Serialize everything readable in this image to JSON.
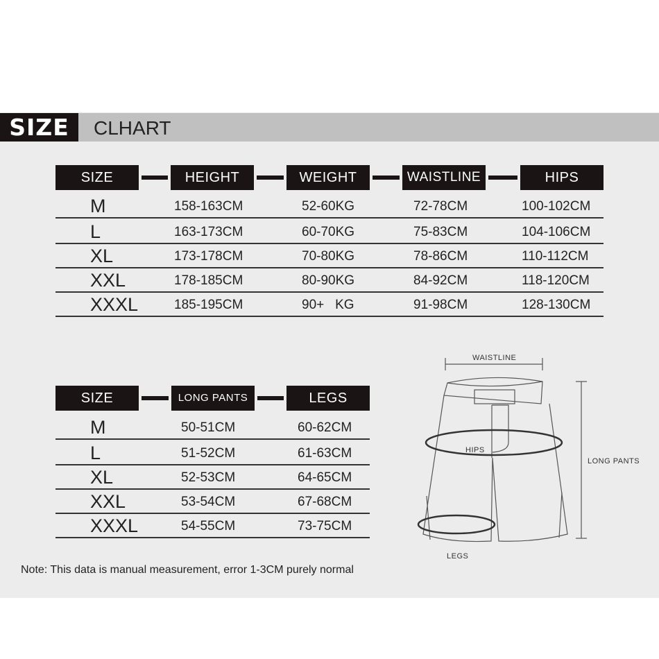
{
  "title": {
    "badge": "SIZE",
    "text": "CLHART"
  },
  "table1": {
    "headers": [
      "SIZE",
      "HEIGHT",
      "WEIGHT",
      "WAISTLINE",
      "HIPS"
    ],
    "rows": [
      [
        "M",
        "158-163CM",
        "52-60KG",
        "72-78CM",
        "100-102CM"
      ],
      [
        "L",
        "163-173CM",
        "60-70KG",
        "75-83CM",
        "104-106CM"
      ],
      [
        "XL",
        "173-178CM",
        "70-80KG",
        "78-86CM",
        "110-112CM"
      ],
      [
        "XXL",
        "178-185CM",
        "80-90KG",
        "84-92CM",
        "118-120CM"
      ],
      [
        "XXXL",
        "185-195CM",
        "90+   KG",
        "91-98CM",
        "128-130CM"
      ]
    ]
  },
  "table2": {
    "headers": [
      "SIZE",
      "LONG PANTS",
      "LEGS"
    ],
    "rows": [
      [
        "M",
        "50-51CM",
        "60-62CM"
      ],
      [
        "L",
        "51-52CM",
        "61-63CM"
      ],
      [
        "XL",
        "52-53CM",
        "64-65CM"
      ],
      [
        "XXL",
        "53-54CM",
        "67-68CM"
      ],
      [
        "XXXL",
        "54-55CM",
        "73-75CM"
      ]
    ]
  },
  "diagram": {
    "waistline": "WAISTLINE",
    "hips": "HIPS",
    "long_pants": "LONG PANTS",
    "legs": "LEGS"
  },
  "note": "Note: This data is manual measurement, error 1-3CM purely normal"
}
